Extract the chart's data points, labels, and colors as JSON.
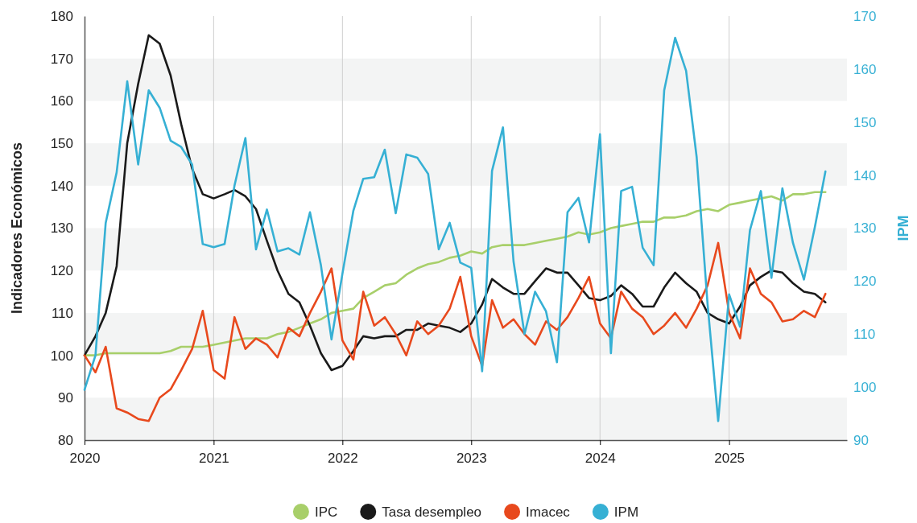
{
  "chart_data": {
    "type": "line",
    "ylabel": "Indicadores Económicos",
    "y2label": "IPM",
    "x": [
      "2020-01",
      "2020-02",
      "2020-03",
      "2020-04",
      "2020-05",
      "2020-06",
      "2020-07",
      "2020-08",
      "2020-09",
      "2020-10",
      "2020-11",
      "2020-12",
      "2021-01",
      "2021-02",
      "2021-03",
      "2021-04",
      "2021-05",
      "2021-06",
      "2021-07",
      "2021-08",
      "2021-09",
      "2021-10",
      "2021-11",
      "2021-12",
      "2022-01",
      "2022-02",
      "2022-03",
      "2022-04",
      "2022-05",
      "2022-06",
      "2022-07",
      "2022-08",
      "2022-09",
      "2022-10",
      "2022-11",
      "2022-12",
      "2023-01",
      "2023-02",
      "2023-03",
      "2023-04",
      "2023-05",
      "2023-06",
      "2023-07",
      "2023-08",
      "2023-09",
      "2023-10",
      "2023-11",
      "2023-12",
      "2024-01",
      "2024-02",
      "2024-03",
      "2024-04",
      "2024-05",
      "2024-06",
      "2024-07",
      "2024-08",
      "2024-09",
      "2024-10",
      "2024-11",
      "2024-12",
      "2025-01",
      "2025-02",
      "2025-03",
      "2025-04",
      "2025-05",
      "2025-06",
      "2025-07",
      "2025-08",
      "2025-09",
      "2025-10"
    ],
    "xlim": [
      "2020-01",
      "2025-12"
    ],
    "xticks": [
      {
        "value": "2020-01",
        "label": "2020"
      },
      {
        "value": "2021-01",
        "label": "2021"
      },
      {
        "value": "2022-01",
        "label": "2022"
      },
      {
        "value": "2023-01",
        "label": "2023"
      },
      {
        "value": "2024-01",
        "label": "2024"
      },
      {
        "value": "2025-01",
        "label": "2025"
      }
    ],
    "ylim": [
      80,
      180
    ],
    "yticks": [
      80,
      90,
      100,
      110,
      120,
      130,
      140,
      150,
      160,
      170,
      180
    ],
    "y2lim": [
      90,
      170
    ],
    "y2ticks": [
      90,
      100,
      110,
      120,
      130,
      140,
      150,
      160,
      170
    ],
    "grid": true,
    "legend": "bottom",
    "marker": "none",
    "line_style": "solid",
    "series": [
      {
        "name": "IPC",
        "color": "#a8cf6a",
        "values": [
          100,
          100,
          100.5,
          100.5,
          100.5,
          100.5,
          100.5,
          100.5,
          101,
          102,
          102,
          102,
          102.5,
          103,
          103.5,
          104,
          104,
          104,
          105,
          105.5,
          106.5,
          107.5,
          108.5,
          110,
          110.5,
          111,
          113.5,
          115,
          116.5,
          117,
          119,
          120.5,
          121.5,
          122,
          123,
          123.5,
          124.5,
          124,
          125.5,
          126,
          126,
          126,
          126.5,
          127,
          127.5,
          128,
          129,
          128.5,
          129,
          130,
          130.5,
          131,
          131.5,
          131.5,
          132.5,
          132.5,
          133,
          134,
          134.5,
          134,
          135.5,
          136,
          136.5,
          137,
          137.5,
          136.5,
          138,
          138,
          138.5,
          138.5
        ]
      },
      {
        "name": "Tasa desempleo",
        "color": "#1a1a1a",
        "values": [
          100,
          104.5,
          110,
          121,
          150,
          164,
          175.5,
          173.5,
          166,
          154.5,
          144,
          138,
          137,
          138,
          139,
          137.5,
          134.5,
          127,
          120,
          114.5,
          112.5,
          107,
          100.5,
          96.5,
          97.5,
          101,
          104.5,
          104,
          104.5,
          104.5,
          106,
          106,
          107.5,
          107,
          106.5,
          105.5,
          107.5,
          112,
          118,
          116,
          114.5,
          114.5,
          117.5,
          120.5,
          119.5,
          119.5,
          116.5,
          113.5,
          113,
          114,
          116.5,
          114.5,
          111.5,
          111.5,
          116,
          119.5,
          117,
          115,
          110,
          108.5,
          107.5,
          111.5,
          116.5,
          118.5,
          120,
          119.5,
          117,
          115,
          114.5,
          112.5
        ]
      },
      {
        "name": "Imacec",
        "color": "#e8491d",
        "values": [
          100,
          96,
          102,
          87.5,
          86.5,
          85,
          84.5,
          90,
          92,
          96.5,
          101.5,
          110.5,
          96.5,
          94.5,
          109,
          101.5,
          104,
          102.5,
          99.5,
          106.5,
          104.5,
          110,
          115,
          120.5,
          103.5,
          99,
          115,
          107,
          109,
          105,
          100,
          108,
          105,
          107,
          111,
          118.5,
          104.5,
          97.5,
          113,
          106.5,
          108.5,
          105,
          102.5,
          108,
          106,
          109,
          113.5,
          118.5,
          107.5,
          104,
          115,
          111,
          109,
          105,
          107,
          110,
          106.5,
          111,
          116.5,
          126.5,
          110,
          104,
          120.5,
          114.5,
          112.5,
          108,
          108.5,
          110.5,
          109,
          114.5
        ]
      },
      {
        "name": "IPM",
        "color": "#36b0d4",
        "axis": "y2",
        "values": [
          99.5,
          106,
          131,
          140.5,
          157.7,
          142,
          156,
          152.7,
          146.5,
          145.3,
          142,
          127,
          126.4,
          127,
          138,
          147,
          126,
          133.5,
          125.6,
          126.2,
          125,
          133,
          123,
          109,
          121.4,
          133.3,
          139.3,
          139.6,
          144.8,
          132.8,
          143.9,
          143.3,
          140.2,
          126,
          131,
          123.5,
          122.5,
          103,
          140.8,
          149,
          123.7,
          110,
          118,
          114.3,
          104.7,
          133,
          135.7,
          127.3,
          147.7,
          106.4,
          137,
          137.8,
          126.3,
          123,
          156,
          165.9,
          159.7,
          143.4,
          115.6,
          93.6,
          117.5,
          111.4,
          129.6,
          137,
          120.6,
          137.5,
          127.2,
          120.3,
          130.2,
          140.7
        ]
      }
    ]
  }
}
